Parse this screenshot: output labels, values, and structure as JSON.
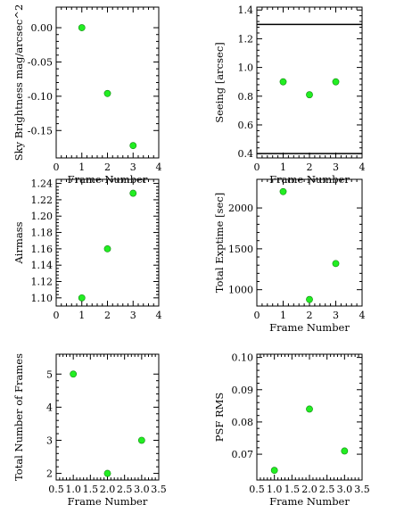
{
  "colors": {
    "marker": "#22ee22",
    "marker_edge": "#118811",
    "axis": "#000000"
  },
  "chart_data": [
    {
      "type": "scatter",
      "xlabel": "Frame Number",
      "ylabel": "Sky Brightness mag/arcsec^2",
      "xlim": [
        0,
        4
      ],
      "ylim": [
        -0.19,
        0.03
      ],
      "xticks": [
        0,
        1,
        2,
        3,
        4
      ],
      "xtick_labels": [
        "0",
        "1",
        "2",
        "3",
        "4"
      ],
      "yticks": [
        0.0,
        -0.05,
        -0.1,
        -0.15
      ],
      "ytick_labels": [
        "0.00",
        "-0.05",
        "-0.10",
        "-0.15"
      ],
      "x": [
        1,
        2,
        3
      ],
      "y": [
        0.0,
        -0.096,
        -0.172
      ]
    },
    {
      "type": "scatter",
      "xlabel": "Frame Number",
      "ylabel": "Seeing [arcsec]",
      "xlim": [
        0,
        4
      ],
      "ylim": [
        0.37,
        1.42
      ],
      "xticks": [
        0,
        1,
        2,
        3,
        4
      ],
      "xtick_labels": [
        "0",
        "1",
        "2",
        "3",
        "4"
      ],
      "yticks": [
        0.4,
        0.6,
        0.8,
        1.0,
        1.2,
        1.4
      ],
      "ytick_labels": [
        "0.4",
        "0.6",
        "0.8",
        "1.0",
        "1.2",
        "1.4"
      ],
      "x": [
        1,
        2,
        3
      ],
      "y": [
        0.9,
        0.81,
        0.9
      ],
      "hlines": [
        0.4,
        1.3
      ]
    },
    {
      "type": "scatter",
      "xlabel": "",
      "ylabel": "Airmass",
      "xlim": [
        0,
        4
      ],
      "ylim": [
        1.09,
        1.245
      ],
      "xticks": [
        0,
        1,
        2,
        3,
        4
      ],
      "xtick_labels": [
        "0",
        "1",
        "2",
        "3",
        "4"
      ],
      "yticks": [
        1.1,
        1.12,
        1.14,
        1.16,
        1.18,
        1.2,
        1.22,
        1.24
      ],
      "ytick_labels": [
        "1.10",
        "1.12",
        "1.14",
        "1.16",
        "1.18",
        "1.20",
        "1.22",
        "1.24"
      ],
      "x": [
        1,
        2,
        3
      ],
      "y": [
        1.1,
        1.16,
        1.228
      ]
    },
    {
      "type": "scatter",
      "xlabel": "Frame Number",
      "ylabel": "Total Exptime [sec]",
      "xlim": [
        0,
        4
      ],
      "ylim": [
        800,
        2350
      ],
      "xticks": [
        0,
        1,
        2,
        3,
        4
      ],
      "xtick_labels": [
        "0",
        "1",
        "2",
        "3",
        "4"
      ],
      "yticks": [
        1000,
        1500,
        2000
      ],
      "ytick_labels": [
        "1000",
        "1500",
        "2000"
      ],
      "x": [
        1,
        2,
        3
      ],
      "y": [
        2200,
        880,
        1320
      ]
    },
    {
      "type": "scatter",
      "xlabel": "Frame Number",
      "ylabel": "Total Number of Frames",
      "xlim": [
        0.5,
        3.5
      ],
      "ylim": [
        1.8,
        5.6
      ],
      "xticks": [
        0.5,
        1.0,
        1.5,
        2.0,
        2.5,
        3.0,
        3.5
      ],
      "xtick_labels": [
        "0.5",
        "1.0",
        "1.5",
        "2.0",
        "2.5",
        "3.0",
        "3.5"
      ],
      "yticks": [
        2,
        3,
        4,
        5
      ],
      "ytick_labels": [
        "2",
        "3",
        "4",
        "5"
      ],
      "x": [
        1,
        2,
        3
      ],
      "y": [
        5,
        2,
        3
      ]
    },
    {
      "type": "scatter",
      "xlabel": "Frame Number",
      "ylabel": "PSF RMS",
      "xlim": [
        0.5,
        3.5
      ],
      "ylim": [
        0.062,
        0.101
      ],
      "xticks": [
        0.5,
        1.0,
        1.5,
        2.0,
        2.5,
        3.0,
        3.5
      ],
      "xtick_labels": [
        "0.5",
        "1.0",
        "1.5",
        "2.0",
        "2.5",
        "3.0",
        "3.5"
      ],
      "yticks": [
        0.07,
        0.08,
        0.09,
        0.1
      ],
      "ytick_labels": [
        "0.07",
        "0.08",
        "0.09",
        "0.10"
      ],
      "x": [
        1,
        2,
        3
      ],
      "y": [
        0.065,
        0.084,
        0.071
      ]
    }
  ]
}
